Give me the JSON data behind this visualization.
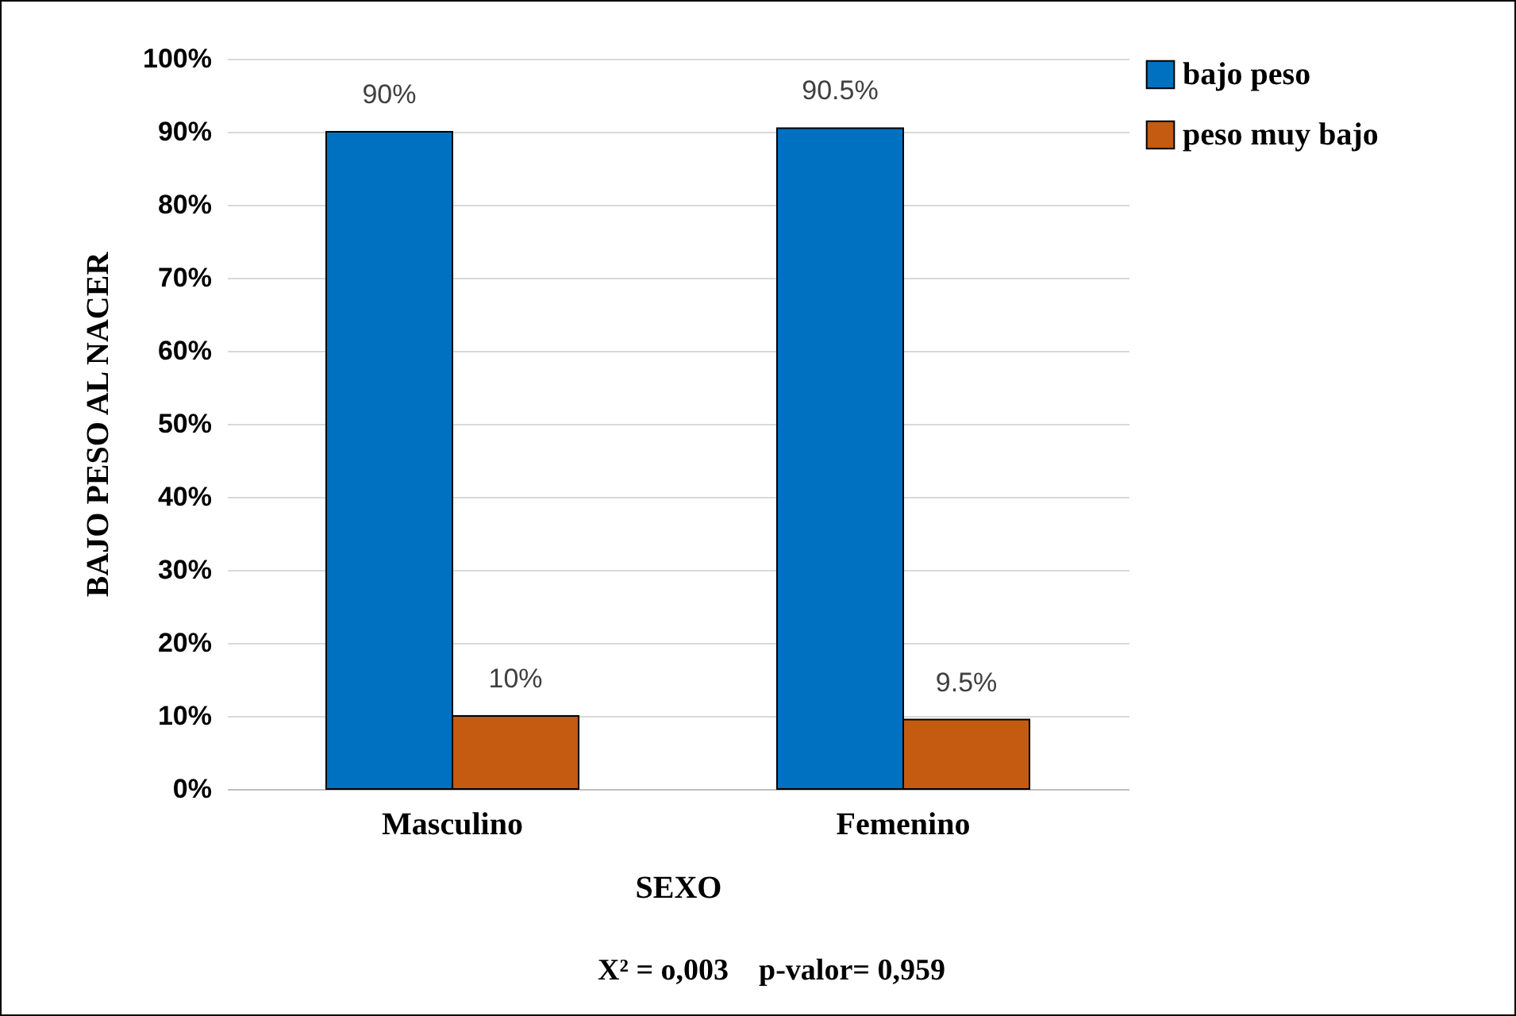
{
  "chart_data": {
    "type": "bar",
    "xlabel": "SEXO",
    "ylabel": "BAJO PESO AL NACER",
    "categories": [
      "Masculino",
      "Femenino"
    ],
    "series": [
      {
        "name": "bajo peso",
        "color": "#0070c0",
        "values": [
          90,
          90.5
        ],
        "value_labels": [
          "90%",
          "90.5%"
        ]
      },
      {
        "name": "peso muy bajo",
        "color": "#c55a11",
        "values": [
          10,
          9.5
        ],
        "value_labels": [
          "10%",
          "9.5%"
        ]
      }
    ],
    "ylim": [
      0,
      100
    ],
    "yticks": [
      {
        "value": 0,
        "label": "0%"
      },
      {
        "value": 10,
        "label": "10%"
      },
      {
        "value": 20,
        "label": "20%"
      },
      {
        "value": 30,
        "label": "30%"
      },
      {
        "value": 40,
        "label": "40%"
      },
      {
        "value": 50,
        "label": "50%"
      },
      {
        "value": 60,
        "label": "60%"
      },
      {
        "value": 70,
        "label": "70%"
      },
      {
        "value": 80,
        "label": "80%"
      },
      {
        "value": 90,
        "label": "90%"
      },
      {
        "value": 100,
        "label": "100%"
      }
    ],
    "grid": "y",
    "legend": "right",
    "annotations": [
      "X² = o,003    p-valor= 0,959"
    ]
  }
}
